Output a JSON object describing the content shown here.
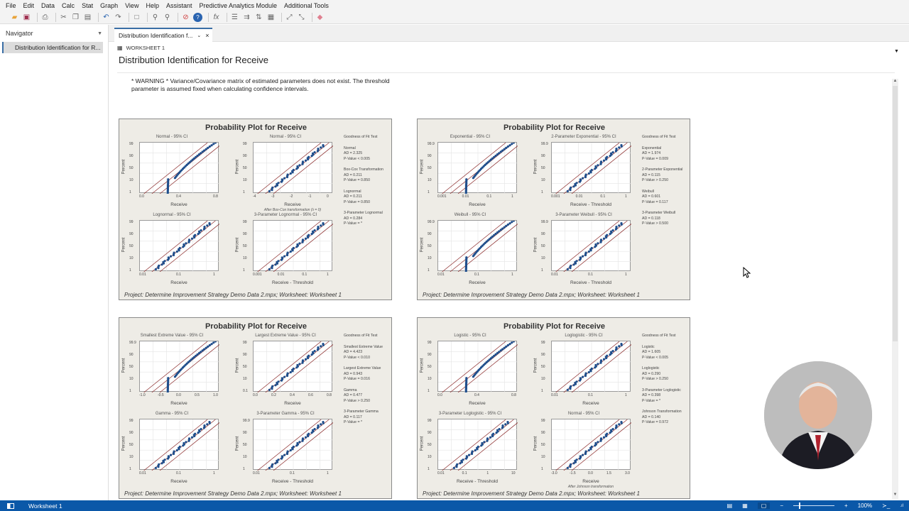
{
  "menu": [
    "File",
    "Edit",
    "Data",
    "Calc",
    "Stat",
    "Graph",
    "View",
    "Help",
    "Assistant",
    "Predictive Analytics Module",
    "Additional Tools"
  ],
  "toolbar": {
    "icons": [
      "open-icon",
      "save-icon",
      "print-icon",
      "cut-icon",
      "copy-icon",
      "paste-icon",
      "undo-icon",
      "redo-icon",
      "window-icon",
      "find-icon",
      "replace-icon",
      "cancel-icon",
      "help-icon",
      "fx-icon",
      "rows-icon",
      "columns-icon",
      "sort-icon",
      "subset-icon",
      "graph-edit-icon",
      "brush-icon",
      "eraser-icon"
    ]
  },
  "navigator": {
    "title": "Navigator",
    "items": [
      {
        "label": "Distribution Identification for  R..."
      }
    ]
  },
  "tab": {
    "label": "Distribution Identification f..."
  },
  "content": {
    "worksheet_label": "WORKSHEET 1",
    "title": "Distribution Identification for  Receive",
    "warning_line1": "* WARNING * Variance/Covariance matrix of estimated parameters does not exist. The threshold",
    "warning_line2": "parameter is assumed fixed when calculating confidence intervals."
  },
  "panels": [
    {
      "title": "Probability Plot for Receive",
      "footer": "Project: Determine Improvement Strategy Demo Data 2.mpx; Worksheet: Worksheet 1",
      "plots": [
        {
          "title": "Normal - 95% CI",
          "xlabel": "Receive",
          "ylabel": "Percent",
          "xticks": [
            "0.0",
            "0.4",
            "0.8"
          ],
          "yticks": [
            "1",
            "10",
            "50",
            "90",
            "99"
          ]
        },
        {
          "title": "Normal - 95% CI",
          "xlabel": "Receive",
          "ylabel": "Percent",
          "xticks": [
            "-4",
            "-3",
            "-2",
            "-1",
            "0"
          ],
          "yticks": [
            "1",
            "10",
            "50",
            "90",
            "99"
          ],
          "note": "After Box-Cox transformation (λ = 0)"
        },
        {
          "title": "Lognormal - 95% CI",
          "xlabel": "Receive",
          "ylabel": "Percent",
          "xticks": [
            "0.01",
            "0.1",
            "1"
          ],
          "yticks": [
            "1",
            "10",
            "50",
            "90",
            "99"
          ]
        },
        {
          "title": "3-Parameter Lognormal - 95% CI",
          "xlabel": "Receive - Threshold",
          "ylabel": "Percent",
          "xticks": [
            "0.001",
            "0.01",
            "0.1",
            "1"
          ],
          "yticks": [
            "1",
            "10",
            "50",
            "90",
            "99"
          ]
        }
      ],
      "gof": {
        "header": "Goodness of Fit Test",
        "entries": [
          {
            "name": "Normal",
            "ad": "AD = 2.325",
            "p": "P-Value < 0.005"
          },
          {
            "name": "Box-Cox Transformation",
            "ad": "AD = 0.211",
            "p": "P-Value = 0.850"
          },
          {
            "name": "Lognormal",
            "ad": "AD = 0.211",
            "p": "P-Value = 0.850"
          },
          {
            "name": "3-Parameter Lognormal",
            "ad": "AD = 0.284",
            "p": "P-Value = *"
          }
        ]
      }
    },
    {
      "title": "Probability Plot for Receive",
      "footer": "Project: Determine Improvement Strategy Demo Data 2.mpx; Worksheet: Worksheet 1",
      "plots": [
        {
          "title": "Exponential - 95% CI",
          "xlabel": "Receive",
          "ylabel": "Percent",
          "xticks": [
            "0.001",
            "0.01",
            "0.1",
            "1"
          ],
          "yticks": [
            "1",
            "10",
            "50",
            "90",
            "99.9"
          ]
        },
        {
          "title": "2-Parameter Exponential - 95% CI",
          "xlabel": "Receive - Threshold",
          "ylabel": "Percent",
          "xticks": [
            "0.001",
            "0.01",
            "0.1",
            "1"
          ],
          "yticks": [
            "1",
            "10",
            "50",
            "90",
            "99.9"
          ]
        },
        {
          "title": "Weibull - 95% CI",
          "xlabel": "Receive",
          "ylabel": "Percent",
          "xticks": [
            "0.01",
            "0.1",
            "1"
          ],
          "yticks": [
            "1",
            "10",
            "50",
            "90",
            "99.9"
          ]
        },
        {
          "title": "3-Parameter Weibull - 95% CI",
          "xlabel": "Receive - Threshold",
          "ylabel": "Percent",
          "xticks": [
            "0.01",
            "0.1",
            "1"
          ],
          "yticks": [
            "1",
            "10",
            "50",
            "90",
            "99.9"
          ]
        }
      ],
      "gof": {
        "header": "Goodness of Fit Test",
        "entries": [
          {
            "name": "Exponential",
            "ad": "AD = 1.974",
            "p": "P-Value = 0.009"
          },
          {
            "name": "2-Parameter Exponential",
            "ad": "AD = 0.115",
            "p": "P-Value > 0.250"
          },
          {
            "name": "Weibull",
            "ad": "AD = 0.601",
            "p": "P-Value = 0.117"
          },
          {
            "name": "3-Parameter Weibull",
            "ad": "AD = 0.118",
            "p": "P-Value > 0.500"
          }
        ]
      }
    },
    {
      "title": "Probability Plot for Receive",
      "footer": "Project: Determine Improvement Strategy Demo Data 2.mpx; Worksheet: Worksheet 1",
      "plots": [
        {
          "title": "Smallest Extreme Value - 95% CI",
          "xlabel": "Receive",
          "ylabel": "Percent",
          "xticks": [
            "-1.0",
            "-0.5",
            "0.0",
            "0.5",
            "1.0"
          ],
          "yticks": [
            "1",
            "10",
            "50",
            "90",
            "99.9"
          ]
        },
        {
          "title": "Largest Extreme Value - 95% CI",
          "xlabel": "Receive",
          "ylabel": "Percent",
          "xticks": [
            "0.0",
            "0.2",
            "0.4",
            "0.6",
            "0.8"
          ],
          "yticks": [
            "0.1",
            "10",
            "50",
            "90",
            "99"
          ]
        },
        {
          "title": "Gamma - 95% CI",
          "xlabel": "Receive",
          "ylabel": "Percent",
          "xticks": [
            "0.01",
            "0.1",
            "1"
          ],
          "yticks": [
            "1",
            "10",
            "50",
            "90",
            "99"
          ]
        },
        {
          "title": "3-Parameter Gamma - 95% CI",
          "xlabel": "Receive - Threshold",
          "ylabel": "Percent",
          "xticks": [
            "0.01",
            "0.1",
            "1"
          ],
          "yticks": [
            "1",
            "10",
            "50",
            "90",
            "99.9"
          ]
        }
      ],
      "gof": {
        "header": "Goodness of Fit Test",
        "entries": [
          {
            "name": "Smallest Extreme Value",
            "ad": "AD = 4.423",
            "p": "P-Value < 0.010"
          },
          {
            "name": "Largest Extreme Value",
            "ad": "AD = 0.943",
            "p": "P-Value = 0.016"
          },
          {
            "name": "Gamma",
            "ad": "AD = 0.477",
            "p": "P-Value > 0.250"
          },
          {
            "name": "3-Parameter Gamma",
            "ad": "AD = 0.117",
            "p": "P-Value = *"
          }
        ]
      }
    },
    {
      "title": "Probability Plot for Receive",
      "footer": "Project: Determine Improvement Strategy Demo Data 2.mpx; Worksheet: Worksheet 1",
      "plots": [
        {
          "title": "Logistic - 95% CI",
          "xlabel": "Receive",
          "ylabel": "Percent",
          "xticks": [
            "0.0",
            "0.4",
            "0.8"
          ],
          "yticks": [
            "1",
            "10",
            "50",
            "90",
            "99"
          ]
        },
        {
          "title": "Loglogistic - 95% CI",
          "xlabel": "Receive",
          "ylabel": "Percent",
          "xticks": [
            "0.01",
            "0.1",
            "1"
          ],
          "yticks": [
            "1",
            "10",
            "50",
            "90",
            "99"
          ]
        },
        {
          "title": "3-Parameter Loglogistic - 95% CI",
          "xlabel": "Receive - Threshold",
          "ylabel": "Percent",
          "xticks": [
            "0.01",
            "0.1",
            "1",
            "10"
          ],
          "yticks": [
            "1",
            "10",
            "50",
            "90",
            "99"
          ]
        },
        {
          "title": "Normal - 95% CI",
          "xlabel": "Receive",
          "ylabel": "Percent",
          "xticks": [
            "-3.0",
            "-1.5",
            "0.0",
            "1.5",
            "3.0"
          ],
          "yticks": [
            "1",
            "10",
            "50",
            "90",
            "99"
          ],
          "note": "After Johnson transformation"
        }
      ],
      "gof": {
        "header": "Goodness of Fit Test",
        "entries": [
          {
            "name": "Logistic",
            "ad": "AD = 1.605",
            "p": "P-Value < 0.005"
          },
          {
            "name": "Loglogistic",
            "ad": "AD = 0.290",
            "p": "P-Value > 0.250"
          },
          {
            "name": "3-Parameter Loglogistic",
            "ad": "AD = 0.398",
            "p": "P-Value = *"
          },
          {
            "name": "Johnson Transformation",
            "ad": "AD = 0.140",
            "p": "P-Value = 0.972"
          }
        ]
      }
    }
  ],
  "statusbar": {
    "worksheet": "Worksheet 1",
    "zoom": "100%"
  },
  "colors": {
    "accent": "#0b58a8",
    "points": "#1f4e8c",
    "ci_lines": "#8b2a2a",
    "panel_bg": "#eeece6"
  }
}
